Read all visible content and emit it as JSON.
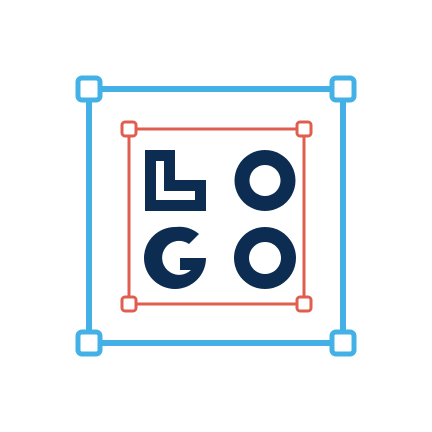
{
  "logo": {
    "text": "LOGO",
    "letters": [
      "L",
      "O",
      "G",
      "O"
    ]
  },
  "colors": {
    "outer_frame": "#43b1e6",
    "inner_frame": "#e05e4e",
    "letters": "#0d2c52",
    "background": "#ffffff",
    "handle_fill": "#ffffff"
  },
  "icons": {
    "outer_selection": "selection-frame-icon",
    "inner_selection": "bounding-box-icon"
  }
}
